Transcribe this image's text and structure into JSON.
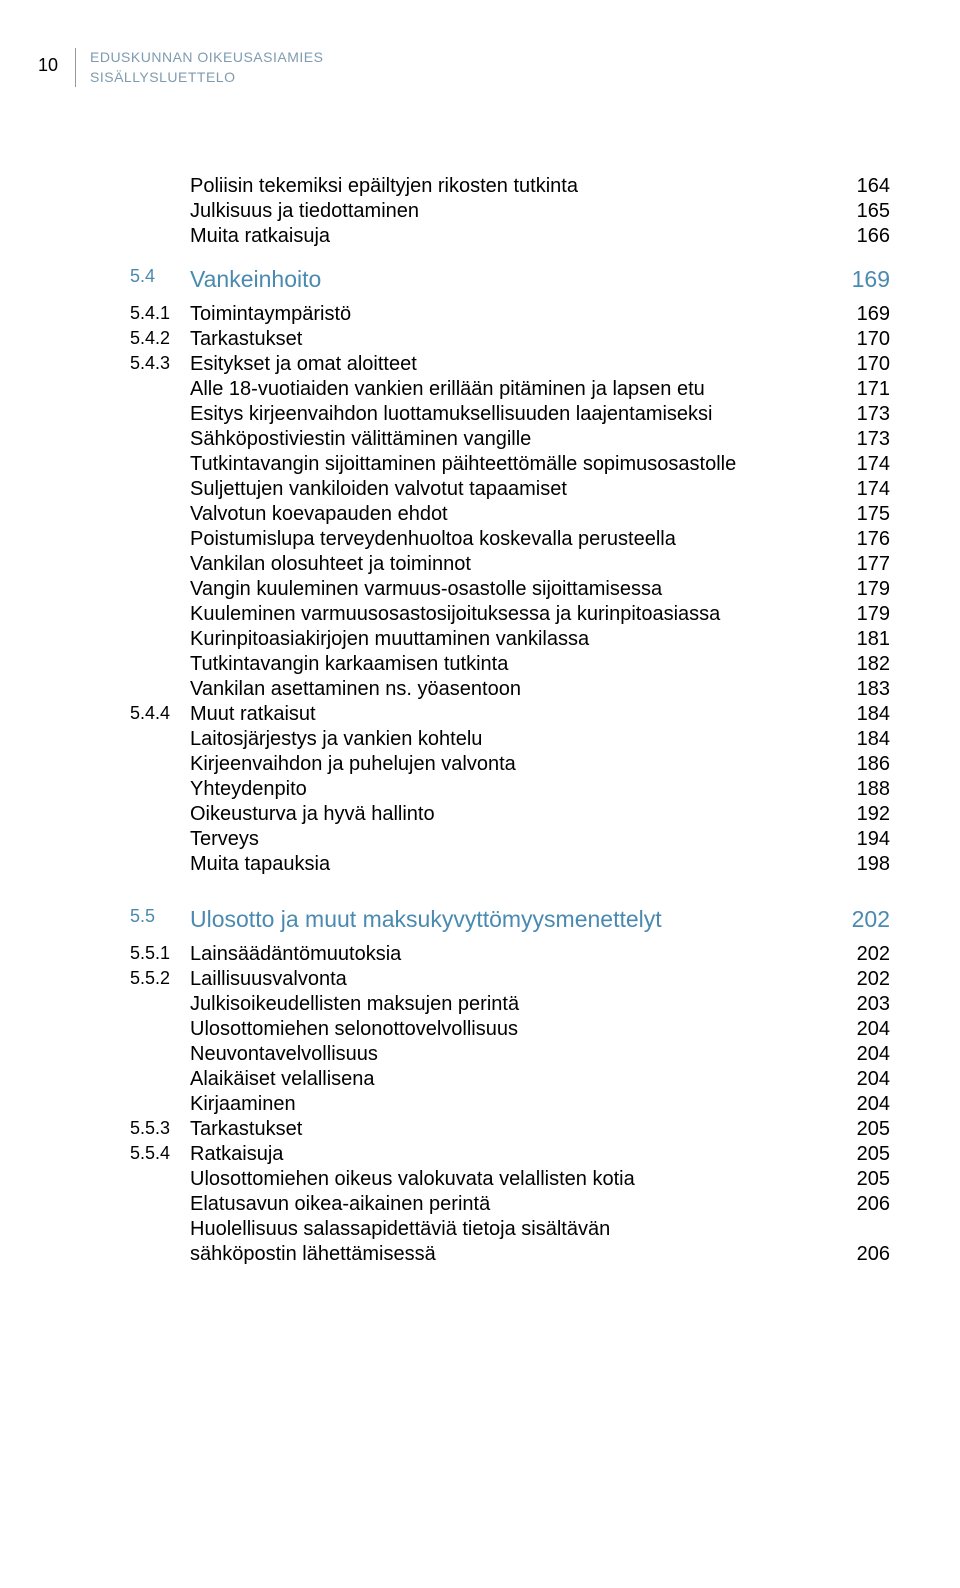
{
  "page_number": "10",
  "header": {
    "line1": "EDUSKUNNAN OIKEUSASIAMIES",
    "line2": "SISÄLLYSLUETTELO",
    "color": "#7f9bb0"
  },
  "colors": {
    "section_head": "#4a8ab0",
    "text": "#000000",
    "header_rule": "#999999"
  },
  "typography": {
    "body_fontsize": 20,
    "section_fontsize": 23,
    "header_fontsize": 14,
    "pagenum_fontsize": 18,
    "font_family": "Arial"
  },
  "toc": [
    {
      "type": "item",
      "num": "",
      "label": "Poliisin tekemiksi epäiltyjen rikosten tutkinta",
      "page": "164"
    },
    {
      "type": "item",
      "num": "",
      "label": "Julkisuus ja tiedottaminen",
      "page": "165"
    },
    {
      "type": "item",
      "num": "",
      "label": "Muita ratkaisuja",
      "page": "166"
    },
    {
      "type": "space-md"
    },
    {
      "type": "section",
      "num": "5.4",
      "label": "Vankeinhoito",
      "page": "169"
    },
    {
      "type": "subsection",
      "num": "5.4.1",
      "label": "Toimintaympäristö",
      "page": "169"
    },
    {
      "type": "subsection",
      "num": "5.4.2",
      "label": "Tarkastukset",
      "page": "170"
    },
    {
      "type": "subsection",
      "num": "5.4.3",
      "label": "Esitykset ja omat aloitteet",
      "page": "170"
    },
    {
      "type": "item",
      "num": "",
      "label": "Alle 18-vuotiaiden vankien erillään pitäminen ja lapsen etu",
      "page": "171"
    },
    {
      "type": "item",
      "num": "",
      "label": "Esitys kirjeenvaihdon luottamuksellisuuden laajentamiseksi",
      "page": "173"
    },
    {
      "type": "item",
      "num": "",
      "label": "Sähköpostiviestin välittäminen vangille",
      "page": "173"
    },
    {
      "type": "item",
      "num": "",
      "label": "Tutkintavangin sijoittaminen päihteettömälle sopimusosastolle",
      "page": "174"
    },
    {
      "type": "item",
      "num": "",
      "label": "Suljettujen vankiloiden valvotut tapaamiset",
      "page": "174"
    },
    {
      "type": "item",
      "num": "",
      "label": "Valvotun koevapauden ehdot",
      "page": "175"
    },
    {
      "type": "item",
      "num": "",
      "label": "Poistumislupa terveydenhuoltoa koskevalla perusteella",
      "page": "176"
    },
    {
      "type": "item",
      "num": "",
      "label": "Vankilan olosuhteet ja toiminnot",
      "page": "177"
    },
    {
      "type": "item",
      "num": "",
      "label": "Vangin kuuleminen varmuus-osastolle sijoittamisessa",
      "page": "179"
    },
    {
      "type": "item",
      "num": "",
      "label": "Kuuleminen varmuusosastosijoituksessa ja kurinpitoasiassa",
      "page": "179"
    },
    {
      "type": "item",
      "num": "",
      "label": "Kurinpitoasiakirjojen muuttaminen vankilassa",
      "page": "181"
    },
    {
      "type": "item",
      "num": "",
      "label": "Tutkintavangin karkaamisen tutkinta",
      "page": "182"
    },
    {
      "type": "item",
      "num": "",
      "label": "Vankilan asettaminen ns. yöasentoon",
      "page": "183"
    },
    {
      "type": "subsection",
      "num": "5.4.4",
      "label": "Muut ratkaisut",
      "page": "184"
    },
    {
      "type": "item",
      "num": "",
      "label": "Laitosjärjestys ja vankien kohtelu",
      "page": "184"
    },
    {
      "type": "item",
      "num": "",
      "label": "Kirjeenvaihdon ja puhelujen valvonta",
      "page": "186"
    },
    {
      "type": "item",
      "num": "",
      "label": "Yhteydenpito",
      "page": "188"
    },
    {
      "type": "item",
      "num": "",
      "label": "Oikeusturva ja hyvä hallinto",
      "page": "192"
    },
    {
      "type": "item",
      "num": "",
      "label": "Terveys",
      "page": "194"
    },
    {
      "type": "item",
      "num": "",
      "label": "Muita tapauksia",
      "page": "198"
    },
    {
      "type": "space-lg"
    },
    {
      "type": "section",
      "num": "5.5",
      "label": "Ulosotto ja muut maksukyvyttömyysmenettelyt",
      "page": "202"
    },
    {
      "type": "subsection",
      "num": "5.5.1",
      "label": "Lainsäädäntömuutoksia",
      "page": "202"
    },
    {
      "type": "subsection",
      "num": "5.5.2",
      "label": "Laillisuusvalvonta",
      "page": "202"
    },
    {
      "type": "item",
      "num": "",
      "label": "Julkisoikeudellisten maksujen perintä",
      "page": "203"
    },
    {
      "type": "item",
      "num": "",
      "label": "Ulosottomiehen selonottovelvollisuus",
      "page": "204"
    },
    {
      "type": "item",
      "num": "",
      "label": "Neuvontavelvollisuus",
      "page": "204"
    },
    {
      "type": "item",
      "num": "",
      "label": "Alaikäiset velallisena",
      "page": "204"
    },
    {
      "type": "item",
      "num": "",
      "label": "Kirjaaminen",
      "page": "204"
    },
    {
      "type": "subsection",
      "num": "5.5.3",
      "label": "Tarkastukset",
      "page": "205"
    },
    {
      "type": "subsection",
      "num": "5.5.4",
      "label": "Ratkaisuja",
      "page": "205"
    },
    {
      "type": "item",
      "num": "",
      "label": "Ulosottomiehen oikeus valokuvata velallisten kotia",
      "page": "205"
    },
    {
      "type": "item",
      "num": "",
      "label": "Elatusavun oikea-aikainen perintä",
      "page": "206"
    },
    {
      "type": "item-2line",
      "num": "",
      "label1": "Huolellisuus salassapidettäviä tietoja sisältävän",
      "label2": "sähköpostin lähettämisessä",
      "page": "206"
    }
  ]
}
